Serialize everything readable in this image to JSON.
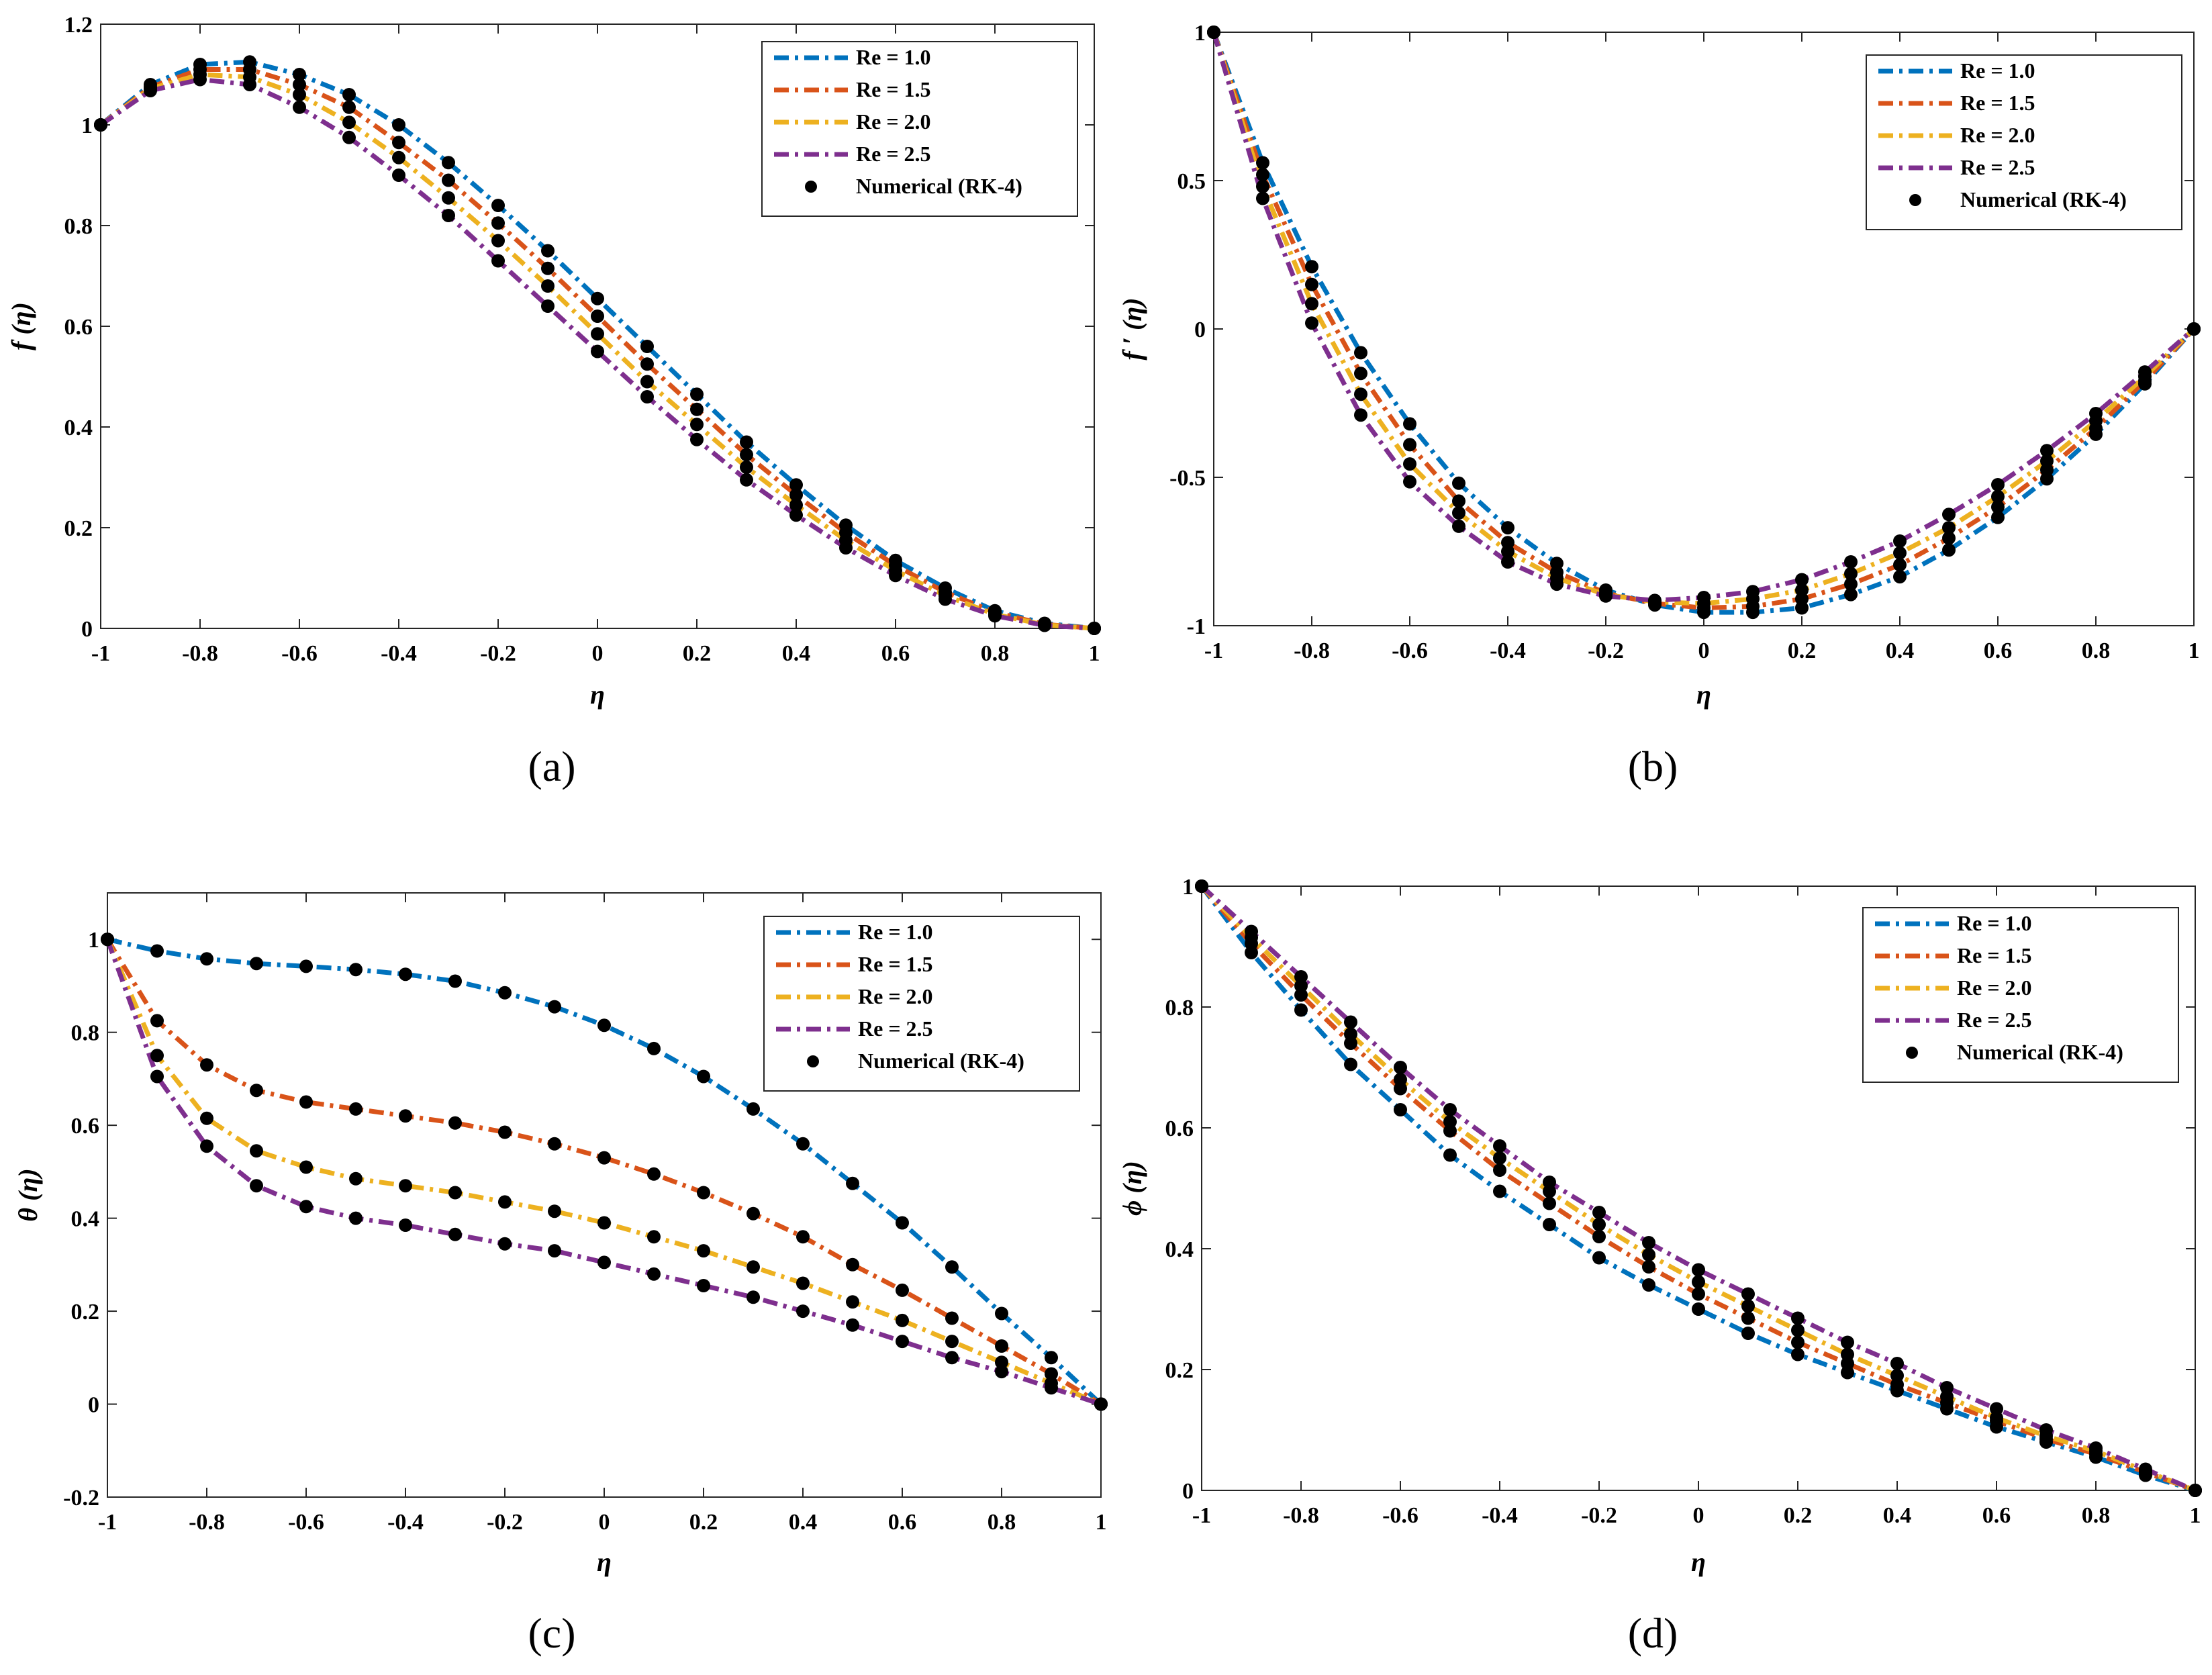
{
  "colors": {
    "re10": "#0072BD",
    "re15": "#D95319",
    "re20": "#EDB120",
    "re25": "#7E2F8E",
    "numerical": "#000000"
  },
  "chart_data": [
    {
      "id": "a",
      "type": "line",
      "caption": "(a)",
      "xlabel": "η",
      "ylabel": "f (η)",
      "xlim": [
        -1,
        1
      ],
      "ylim": [
        0,
        1.2
      ],
      "xticks": [
        -1,
        -0.8,
        -0.6,
        -0.4,
        -0.2,
        0,
        0.2,
        0.4,
        0.6,
        0.8,
        1
      ],
      "yticks": [
        0,
        0.2,
        0.4,
        0.6,
        0.8,
        1,
        1.2
      ],
      "xtick_labels": [
        "-1",
        "-0.8",
        "-0.6",
        "-0.4",
        "-0.2",
        "0",
        "0.2",
        "0.4",
        "0.6",
        "0.8",
        "1"
      ],
      "ytick_labels": [
        "0",
        "0.2",
        "0.4",
        "0.6",
        "0.8",
        "1",
        "1.2"
      ],
      "legend_position": "top-right",
      "x": [
        -1,
        -0.9,
        -0.8,
        -0.7,
        -0.6,
        -0.5,
        -0.4,
        -0.3,
        -0.2,
        -0.1,
        0,
        0.1,
        0.2,
        0.3,
        0.4,
        0.5,
        0.6,
        0.7,
        0.8,
        0.9,
        1
      ],
      "series": [
        {
          "name": "Re = 1.0",
          "color_key": "re10",
          "values": [
            1.0,
            1.08,
            1.12,
            1.125,
            1.1,
            1.06,
            1.0,
            0.925,
            0.84,
            0.75,
            0.655,
            0.56,
            0.465,
            0.37,
            0.285,
            0.205,
            0.135,
            0.08,
            0.035,
            0.01,
            0
          ]
        },
        {
          "name": "Re = 1.5",
          "color_key": "re15",
          "values": [
            1.0,
            1.075,
            1.11,
            1.11,
            1.08,
            1.035,
            0.965,
            0.89,
            0.805,
            0.715,
            0.62,
            0.525,
            0.435,
            0.345,
            0.265,
            0.19,
            0.125,
            0.072,
            0.032,
            0.008,
            0
          ]
        },
        {
          "name": "Re = 2.0",
          "color_key": "re20",
          "values": [
            1.0,
            1.072,
            1.1,
            1.095,
            1.06,
            1.005,
            0.935,
            0.855,
            0.77,
            0.68,
            0.585,
            0.49,
            0.405,
            0.32,
            0.245,
            0.175,
            0.115,
            0.065,
            0.028,
            0.007,
            0
          ]
        },
        {
          "name": "Re = 2.5",
          "color_key": "re25",
          "values": [
            1.0,
            1.068,
            1.09,
            1.08,
            1.035,
            0.975,
            0.9,
            0.82,
            0.73,
            0.64,
            0.55,
            0.46,
            0.375,
            0.295,
            0.225,
            0.16,
            0.105,
            0.058,
            0.025,
            0.006,
            0
          ]
        }
      ],
      "numerical_label": "Numerical (RK-4)"
    },
    {
      "id": "b",
      "type": "line",
      "caption": "(b)",
      "xlabel": "η",
      "ylabel": "f ′ (η)",
      "xlim": [
        -1,
        1
      ],
      "ylim": [
        -1,
        1
      ],
      "xticks": [
        -1,
        -0.8,
        -0.6,
        -0.4,
        -0.2,
        0,
        0.2,
        0.4,
        0.6,
        0.8,
        1
      ],
      "yticks": [
        -1,
        -0.5,
        0,
        0.5,
        1
      ],
      "xtick_labels": [
        "-1",
        "-0.8",
        "-0.6",
        "-0.4",
        "-0.2",
        "0",
        "0.2",
        "0.4",
        "0.6",
        "0.8",
        "1"
      ],
      "ytick_labels": [
        "-1",
        "-0.5",
        "0",
        "0.5",
        "1"
      ],
      "legend_position": "top-right",
      "x": [
        -1,
        -0.9,
        -0.8,
        -0.7,
        -0.6,
        -0.5,
        -0.4,
        -0.3,
        -0.2,
        -0.1,
        0,
        0.1,
        0.2,
        0.3,
        0.4,
        0.5,
        0.6,
        0.7,
        0.8,
        0.9,
        1
      ],
      "series": [
        {
          "name": "Re = 1.0",
          "color_key": "re10",
          "values": [
            1.0,
            0.56,
            0.21,
            -0.08,
            -0.32,
            -0.52,
            -0.67,
            -0.79,
            -0.88,
            -0.93,
            -0.955,
            -0.955,
            -0.94,
            -0.895,
            -0.835,
            -0.745,
            -0.635,
            -0.505,
            -0.355,
            -0.185,
            0
          ]
        },
        {
          "name": "Re = 1.5",
          "color_key": "re15",
          "values": [
            1.0,
            0.52,
            0.15,
            -0.15,
            -0.39,
            -0.58,
            -0.72,
            -0.82,
            -0.89,
            -0.925,
            -0.94,
            -0.935,
            -0.91,
            -0.86,
            -0.795,
            -0.705,
            -0.6,
            -0.475,
            -0.335,
            -0.175,
            0
          ]
        },
        {
          "name": "Re = 2.0",
          "color_key": "re20",
          "values": [
            1.0,
            0.48,
            0.085,
            -0.22,
            -0.455,
            -0.62,
            -0.75,
            -0.84,
            -0.895,
            -0.92,
            -0.925,
            -0.91,
            -0.88,
            -0.825,
            -0.755,
            -0.67,
            -0.565,
            -0.445,
            -0.31,
            -0.16,
            0
          ]
        },
        {
          "name": "Re = 2.5",
          "color_key": "re25",
          "values": [
            1.0,
            0.44,
            0.02,
            -0.29,
            -0.515,
            -0.665,
            -0.785,
            -0.86,
            -0.9,
            -0.915,
            -0.905,
            -0.885,
            -0.845,
            -0.785,
            -0.715,
            -0.625,
            -0.525,
            -0.41,
            -0.285,
            -0.145,
            0
          ]
        }
      ],
      "numerical_label": "Numerical (RK-4)"
    },
    {
      "id": "c",
      "type": "line",
      "caption": "(c)",
      "xlabel": "η",
      "ylabel": "θ (η)",
      "xlim": [
        -1,
        1
      ],
      "ylim": [
        -0.2,
        1.1
      ],
      "xticks": [
        -1,
        -0.8,
        -0.6,
        -0.4,
        -0.2,
        0,
        0.2,
        0.4,
        0.6,
        0.8,
        1
      ],
      "yticks": [
        -0.2,
        0,
        0.2,
        0.4,
        0.6,
        0.8,
        1
      ],
      "xtick_labels": [
        "-1",
        "-0.8",
        "-0.6",
        "-0.4",
        "-0.2",
        "0",
        "0.2",
        "0.4",
        "0.6",
        "0.8",
        "1"
      ],
      "ytick_labels": [
        "-0.2",
        "0",
        "0.2",
        "0.4",
        "0.6",
        "0.8",
        "1"
      ],
      "legend_position": "top-right",
      "x": [
        -1,
        -0.9,
        -0.8,
        -0.7,
        -0.6,
        -0.5,
        -0.4,
        -0.3,
        -0.2,
        -0.1,
        0,
        0.1,
        0.2,
        0.3,
        0.4,
        0.5,
        0.6,
        0.7,
        0.8,
        0.9,
        1
      ],
      "series": [
        {
          "name": "Re = 1.0",
          "color_key": "re10",
          "values": [
            1.0,
            0.975,
            0.958,
            0.948,
            0.942,
            0.935,
            0.925,
            0.91,
            0.885,
            0.855,
            0.815,
            0.765,
            0.705,
            0.635,
            0.56,
            0.475,
            0.39,
            0.295,
            0.195,
            0.1,
            0
          ]
        },
        {
          "name": "Re = 1.5",
          "color_key": "re15",
          "values": [
            1.0,
            0.825,
            0.73,
            0.675,
            0.65,
            0.635,
            0.62,
            0.605,
            0.585,
            0.56,
            0.53,
            0.495,
            0.455,
            0.41,
            0.36,
            0.3,
            0.245,
            0.185,
            0.125,
            0.065,
            0
          ]
        },
        {
          "name": "Re = 2.0",
          "color_key": "re20",
          "values": [
            1.0,
            0.75,
            0.615,
            0.545,
            0.51,
            0.485,
            0.47,
            0.455,
            0.435,
            0.415,
            0.39,
            0.36,
            0.33,
            0.295,
            0.26,
            0.22,
            0.18,
            0.135,
            0.09,
            0.045,
            0
          ]
        },
        {
          "name": "Re = 2.5",
          "color_key": "re25",
          "values": [
            1.0,
            0.705,
            0.555,
            0.47,
            0.425,
            0.4,
            0.385,
            0.365,
            0.345,
            0.33,
            0.305,
            0.28,
            0.255,
            0.23,
            0.2,
            0.17,
            0.135,
            0.1,
            0.07,
            0.035,
            0
          ]
        }
      ],
      "numerical_label": "Numerical (RK-4)"
    },
    {
      "id": "d",
      "type": "line",
      "caption": "(d)",
      "xlabel": "η",
      "ylabel": "ϕ (η)",
      "xlim": [
        -1,
        1
      ],
      "ylim": [
        0,
        1
      ],
      "xticks": [
        -1,
        -0.8,
        -0.6,
        -0.4,
        -0.2,
        0,
        0.2,
        0.4,
        0.6,
        0.8,
        1
      ],
      "yticks": [
        0,
        0.2,
        0.4,
        0.6,
        0.8,
        1
      ],
      "xtick_labels": [
        "-1",
        "-0.8",
        "-0.6",
        "-0.4",
        "-0.2",
        "0",
        "0.2",
        "0.4",
        "0.6",
        "0.8",
        "1"
      ],
      "ytick_labels": [
        "0",
        "0.2",
        "0.4",
        "0.6",
        "0.8",
        "1"
      ],
      "legend_position": "top-right",
      "x": [
        -1,
        -0.9,
        -0.8,
        -0.7,
        -0.6,
        -0.5,
        -0.4,
        -0.3,
        -0.2,
        -0.1,
        0,
        0.1,
        0.2,
        0.3,
        0.4,
        0.5,
        0.6,
        0.7,
        0.8,
        0.9,
        1
      ],
      "series": [
        {
          "name": "Re = 1.0",
          "color_key": "re10",
          "values": [
            1.0,
            0.89,
            0.795,
            0.705,
            0.63,
            0.555,
            0.495,
            0.44,
            0.385,
            0.34,
            0.3,
            0.26,
            0.225,
            0.195,
            0.165,
            0.135,
            0.105,
            0.08,
            0.055,
            0.025,
            0
          ]
        },
        {
          "name": "Re = 1.5",
          "color_key": "re15",
          "values": [
            1.0,
            0.905,
            0.82,
            0.74,
            0.665,
            0.595,
            0.53,
            0.475,
            0.42,
            0.37,
            0.325,
            0.285,
            0.245,
            0.21,
            0.175,
            0.145,
            0.115,
            0.085,
            0.06,
            0.03,
            0
          ]
        },
        {
          "name": "Re = 2.0",
          "color_key": "re20",
          "values": [
            1.0,
            0.915,
            0.835,
            0.755,
            0.68,
            0.61,
            0.55,
            0.495,
            0.44,
            0.39,
            0.345,
            0.305,
            0.265,
            0.225,
            0.19,
            0.155,
            0.12,
            0.09,
            0.065,
            0.032,
            0
          ]
        },
        {
          "name": "Re = 2.5",
          "color_key": "re25",
          "values": [
            1.0,
            0.925,
            0.85,
            0.775,
            0.7,
            0.63,
            0.57,
            0.51,
            0.46,
            0.41,
            0.365,
            0.325,
            0.285,
            0.245,
            0.21,
            0.17,
            0.135,
            0.1,
            0.07,
            0.035,
            0
          ]
        }
      ],
      "numerical_label": "Numerical (RK-4)"
    }
  ]
}
